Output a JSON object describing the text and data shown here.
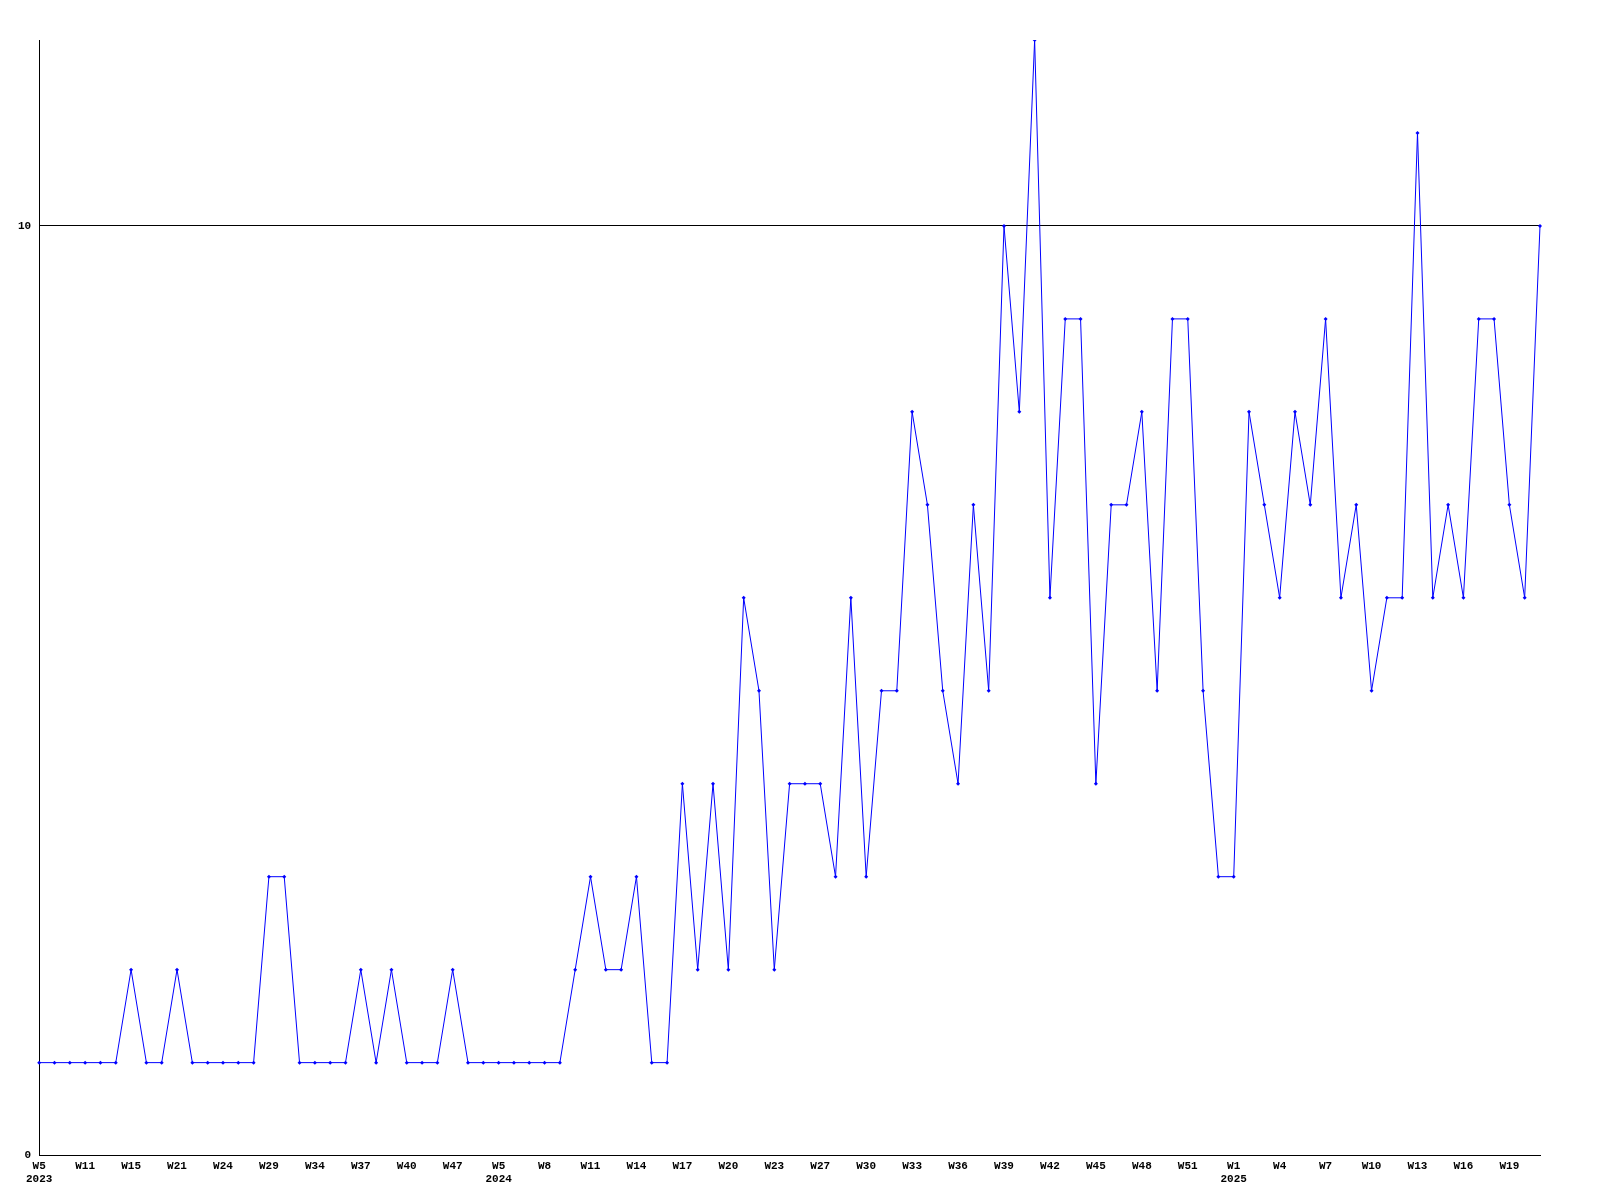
{
  "chart_data": {
    "type": "line",
    "categories": [
      "W5\n2023",
      null,
      null,
      "W11",
      null,
      null,
      "W15",
      null,
      null,
      "W21",
      null,
      null,
      "W24",
      null,
      null,
      "W29",
      null,
      null,
      "W34",
      null,
      null,
      "W37",
      null,
      null,
      "W40",
      null,
      null,
      "W47",
      null,
      null,
      "W5\n2024",
      null,
      null,
      "W8",
      null,
      null,
      "W11",
      null,
      null,
      "W14",
      null,
      null,
      "W17",
      null,
      null,
      "W20",
      null,
      null,
      "W23",
      null,
      null,
      "W27",
      null,
      null,
      "W30",
      null,
      null,
      "W33",
      null,
      null,
      "W36",
      null,
      null,
      "W39",
      null,
      null,
      "W42",
      null,
      null,
      "W45",
      null,
      null,
      "W48",
      null,
      null,
      "W51",
      null,
      null,
      "W1\n2025",
      null,
      null,
      "W4",
      null,
      null,
      "W7",
      null,
      null,
      "W10",
      null,
      null,
      "W13",
      null,
      null,
      "W16",
      null,
      null,
      "W19",
      null,
      null
    ],
    "series": [
      {
        "color": "#0000ff",
        "values": [
          1,
          1,
          1,
          1,
          1,
          1,
          2,
          1,
          1,
          2,
          1,
          1,
          1,
          1,
          1,
          3,
          3,
          1,
          1,
          1,
          1,
          2,
          1,
          2,
          1,
          1,
          1,
          2,
          1,
          1,
          1,
          1,
          1,
          1,
          1,
          2,
          3,
          2,
          2,
          3,
          1,
          1,
          4,
          2,
          4,
          2,
          6,
          5,
          2,
          4,
          4,
          4,
          3,
          6,
          3,
          5,
          5,
          8,
          7,
          5,
          4,
          7,
          5,
          10,
          8,
          12,
          6,
          9,
          9,
          4,
          7,
          7,
          8,
          5,
          9,
          9,
          5,
          3,
          3,
          8,
          7,
          6,
          8,
          7,
          9,
          6,
          7,
          5,
          6,
          6,
          11,
          6,
          7,
          6,
          9,
          9,
          7,
          6,
          10
        ]
      }
    ],
    "ylim": [
      0,
      12
    ],
    "yticks": [
      0,
      10
    ],
    "grid": "y",
    "legend": false,
    "marker": "diamond",
    "line_style": "solid"
  }
}
